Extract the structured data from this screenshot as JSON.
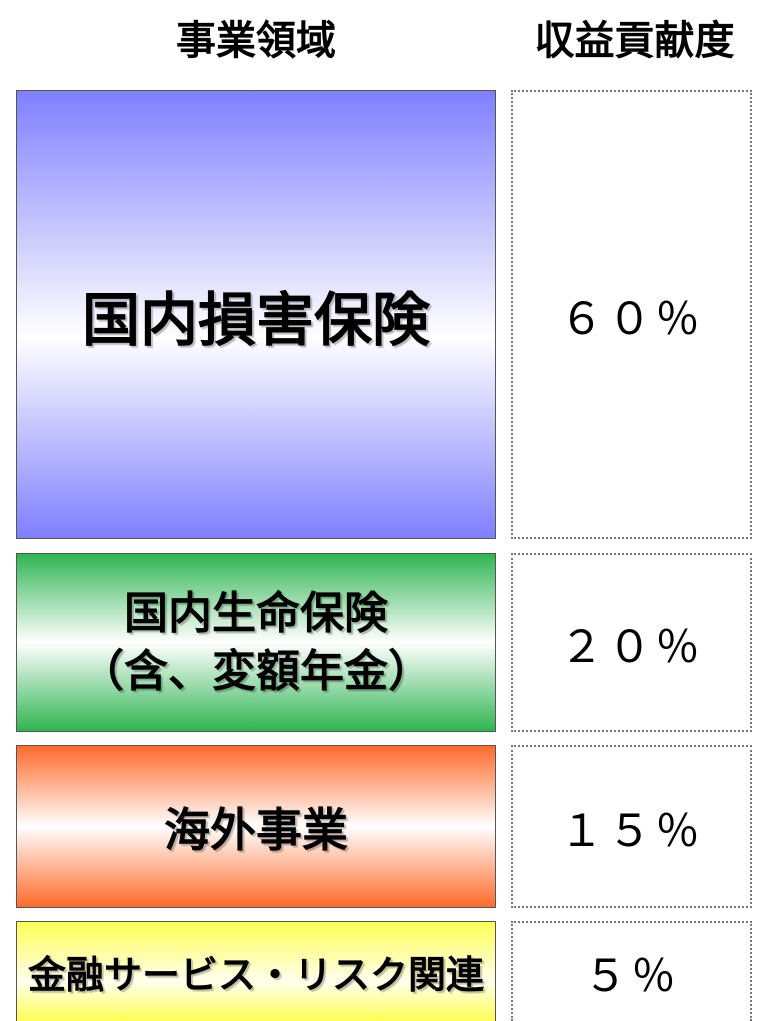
{
  "header": {
    "segment": "事業領域",
    "contribution": "収益貢献度"
  },
  "rows": [
    {
      "lines": [
        "国内損害保険"
      ],
      "contribution": "６０％"
    },
    {
      "lines": [
        "国内生命保険",
        "（含、変額年金）"
      ],
      "contribution": "２０％"
    },
    {
      "lines": [
        "海外事業"
      ],
      "contribution": "１５％"
    },
    {
      "lines": [
        "金融サービス・リスク関連"
      ],
      "contribution": "５％"
    }
  ]
}
